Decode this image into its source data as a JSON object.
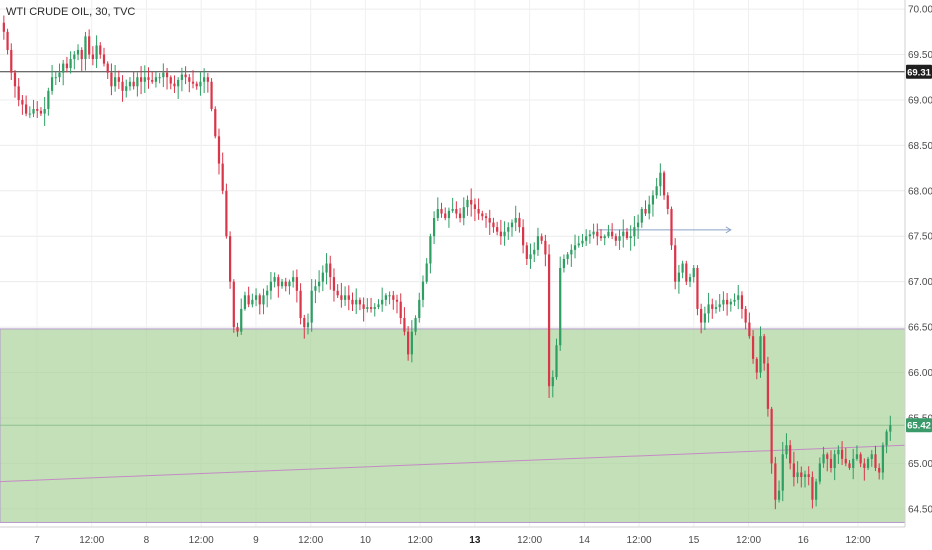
{
  "chart_data": {
    "type": "candlestick",
    "title": "WTI CRUDE OIL, 30, TVC",
    "ylim": [
      64.3,
      70.1
    ],
    "y_ticks": [
      "70.00",
      "69.50",
      "69.00",
      "68.50",
      "68.00",
      "67.50",
      "67.00",
      "66.50",
      "66.00",
      "65.50",
      "65.00",
      "64.50"
    ],
    "x_ticks": [
      "7",
      "12:00",
      "8",
      "12:00",
      "9",
      "12:00",
      "10",
      "12:00",
      "13",
      "12:00",
      "14",
      "12:00",
      "15",
      "12:00",
      "16",
      "12:00"
    ],
    "bold_x_ticks": [
      "13"
    ],
    "up_color": "#2e9e63",
    "down_color": "#d9364a",
    "zone": {
      "low": 64.35,
      "high": 66.48,
      "color": "#a9d39a"
    },
    "resistance_line": {
      "price": 69.31,
      "label": "69.31"
    },
    "current_price": {
      "price": 65.42,
      "label": "65.42"
    },
    "trend_line": {
      "from": [
        0,
        64.8
      ],
      "to": [
        257,
        65.2
      ]
    },
    "arrow_annotation": {
      "from": [
        160,
        67.57
      ],
      "to": [
        196,
        67.57
      ]
    },
    "closes": [
      69.75,
      69.55,
      69.3,
      69.15,
      69.0,
      68.95,
      68.85,
      68.85,
      68.9,
      68.88,
      68.85,
      68.9,
      69.1,
      69.25,
      69.25,
      69.3,
      69.4,
      69.35,
      69.45,
      69.5,
      69.55,
      69.45,
      69.7,
      69.5,
      69.45,
      69.6,
      69.5,
      69.4,
      69.3,
      69.15,
      69.25,
      69.2,
      69.1,
      69.15,
      69.2,
      69.15,
      69.25,
      69.2,
      69.25,
      69.22,
      69.2,
      69.25,
      69.25,
      69.3,
      69.25,
      69.18,
      69.15,
      69.22,
      69.28,
      69.25,
      69.2,
      69.18,
      69.15,
      69.2,
      69.25,
      69.2,
      68.9,
      68.6,
      68.3,
      68.0,
      67.5,
      67.0,
      66.5,
      66.45,
      66.7,
      66.85,
      66.75,
      66.8,
      66.85,
      66.75,
      66.85,
      66.9,
      67.0,
      67.05,
      66.95,
      67.0,
      66.95,
      67.0,
      67.05,
      66.9,
      66.6,
      66.5,
      66.55,
      66.9,
      66.95,
      67.0,
      67.1,
      67.2,
      67.05,
      66.9,
      66.85,
      66.8,
      66.85,
      66.8,
      66.75,
      66.8,
      66.75,
      66.7,
      66.72,
      66.7,
      66.72,
      66.75,
      66.8,
      66.85,
      66.85,
      66.8,
      66.78,
      66.6,
      66.45,
      66.2,
      66.45,
      66.6,
      66.8,
      67.0,
      67.2,
      67.5,
      67.7,
      67.8,
      67.75,
      67.7,
      67.78,
      67.8,
      67.75,
      67.7,
      67.82,
      67.9,
      67.85,
      67.8,
      67.75,
      67.72,
      67.7,
      67.65,
      67.6,
      67.55,
      67.5,
      67.55,
      67.6,
      67.65,
      67.7,
      67.6,
      67.4,
      67.25,
      67.3,
      67.35,
      67.5,
      67.45,
      67.3,
      65.85,
      65.95,
      66.3,
      67.15,
      67.25,
      67.3,
      67.35,
      67.4,
      67.42,
      67.45,
      67.5,
      67.52,
      67.55,
      67.5,
      67.48,
      67.5,
      67.55,
      67.5,
      67.45,
      67.5,
      67.55,
      67.48,
      67.5,
      67.6,
      67.65,
      67.8,
      67.75,
      67.85,
      67.95,
      68.05,
      68.2,
      67.95,
      67.8,
      67.4,
      67.0,
      67.1,
      67.2,
      67.0,
      67.05,
      67.15,
      66.7,
      66.55,
      66.65,
      66.75,
      66.7,
      66.72,
      66.75,
      66.8,
      66.75,
      66.78,
      66.8,
      66.85,
      66.7,
      66.55,
      66.4,
      66.15,
      66.0,
      66.4,
      66.1,
      65.6,
      65.0,
      64.6,
      64.7,
      65.1,
      65.2,
      65.0,
      64.85,
      64.9,
      64.85,
      64.88,
      64.85,
      64.6,
      64.8,
      65.0,
      65.1,
      65.05,
      64.95,
      65.1,
      65.15,
      65.05,
      65.0,
      64.95,
      65.05,
      65.1,
      65.0,
      64.95,
      65.05,
      65.1,
      64.95,
      64.9,
      65.2,
      65.35,
      65.42
    ]
  }
}
